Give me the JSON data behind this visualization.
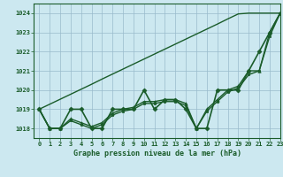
{
  "title": "Graphe pression niveau de la mer (hPa)",
  "background_color": "#cce8f0",
  "plot_bg_color": "#cce8f0",
  "grid_color": "#99bbcc",
  "line_color": "#1a5c2a",
  "xlim": [
    -0.5,
    23
  ],
  "ylim": [
    1017.5,
    1024.5
  ],
  "yticks": [
    1018,
    1019,
    1020,
    1021,
    1022,
    1023,
    1024
  ],
  "xticks": [
    0,
    1,
    2,
    3,
    4,
    5,
    6,
    7,
    8,
    9,
    10,
    11,
    12,
    13,
    14,
    15,
    16,
    17,
    18,
    19,
    20,
    21,
    22,
    23
  ],
  "series": [
    {
      "y": [
        1019.0,
        1019.26,
        1019.52,
        1019.78,
        1020.04,
        1020.3,
        1020.57,
        1020.83,
        1021.09,
        1021.35,
        1021.61,
        1021.87,
        1022.13,
        1022.39,
        1022.65,
        1022.91,
        1023.17,
        1023.43,
        1023.7,
        1023.96,
        1024.0,
        1024.0,
        1024.0,
        1024.0
      ],
      "marker": "None",
      "lw": 1.0,
      "ms": 0
    },
    {
      "y": [
        1019.0,
        1018.0,
        1018.0,
        1019.0,
        1019.0,
        1018.0,
        1018.0,
        1019.0,
        1019.0,
        1019.0,
        1020.0,
        1019.0,
        1019.5,
        1019.5,
        1019.0,
        1018.0,
        1018.0,
        1020.0,
        1020.0,
        1020.0,
        1021.0,
        1022.0,
        1023.0,
        1024.0
      ],
      "marker": "D",
      "lw": 1.2,
      "ms": 2.5
    },
    {
      "y": [
        1019.0,
        1018.0,
        1018.0,
        1018.5,
        1018.3,
        1018.1,
        1018.3,
        1018.8,
        1019.0,
        1019.1,
        1019.4,
        1019.4,
        1019.5,
        1019.5,
        1019.3,
        1018.0,
        1019.0,
        1019.5,
        1020.0,
        1020.2,
        1021.0,
        1021.0,
        1023.0,
        1024.0
      ],
      "marker": "^",
      "lw": 1.0,
      "ms": 2.5
    },
    {
      "y": [
        1019.0,
        1018.0,
        1018.0,
        1018.4,
        1018.2,
        1018.0,
        1018.2,
        1018.7,
        1018.9,
        1019.0,
        1019.3,
        1019.3,
        1019.4,
        1019.4,
        1019.2,
        1018.0,
        1018.9,
        1019.4,
        1019.9,
        1020.1,
        1020.8,
        1021.0,
        1022.8,
        1024.0
      ],
      "marker": "s",
      "lw": 1.0,
      "ms": 2.0
    }
  ]
}
